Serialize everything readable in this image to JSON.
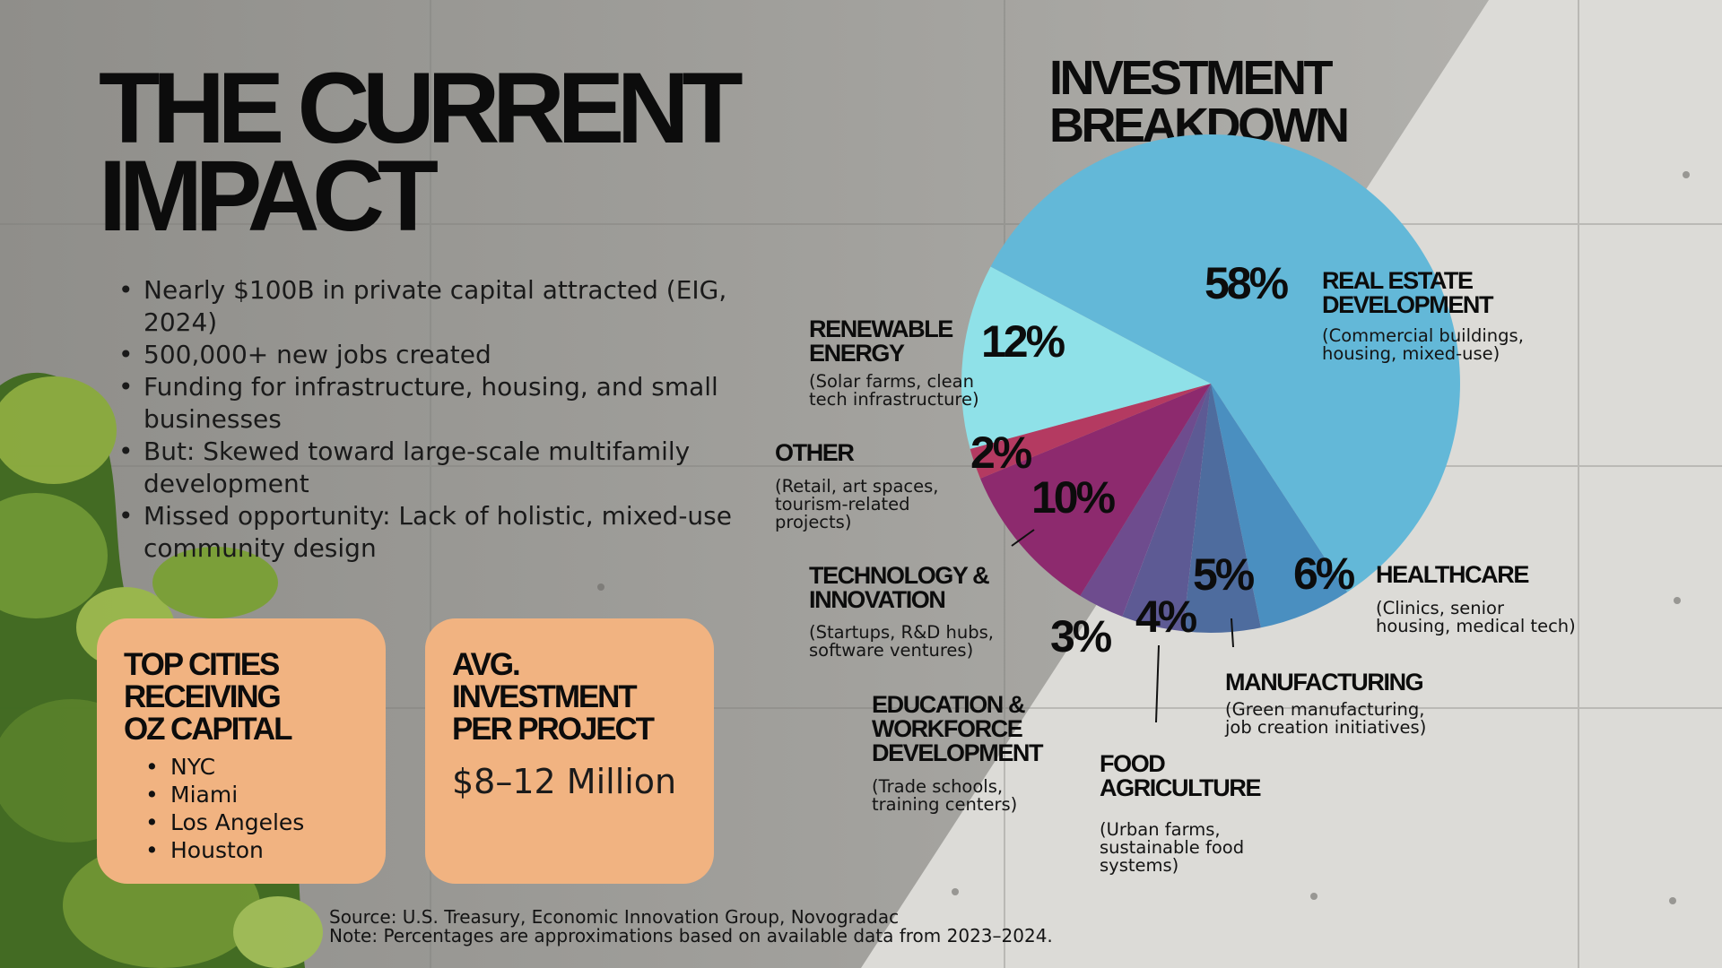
{
  "title": "THE CURRENT IMPACT",
  "title_lines": [
    "THE CURRENT",
    "IMPACT"
  ],
  "bullets": [
    "Nearly $100B in private capital attracted (EIG, 2024)",
    "500,000+ new jobs created",
    "Funding for infrastructure, housing, and small businesses",
    "But: Skewed toward large-scale multifamily development",
    "Missed opportunity: Lack of holistic, mixed-use community design"
  ],
  "cards": {
    "cities": {
      "title_lines": [
        "TOP CITIES",
        "RECEIVING",
        "OZ CAPITAL"
      ],
      "items": [
        "NYC",
        "Miami",
        "Los Angeles",
        "Houston"
      ]
    },
    "avg": {
      "title_lines": [
        "AVG.",
        "INVESTMENT",
        "PER PROJECT"
      ],
      "value": "$8–12 Million"
    }
  },
  "source": {
    "line1": "Source: U.S. Treasury, Economic Innovation Group, Novogradac",
    "line2": "Note: Percentages are approximations based on available data from 2023–2024."
  },
  "chart_data": {
    "type": "pie",
    "title": "INVESTMENT BREAKDOWN",
    "title_lines": [
      "INVESTMENT",
      "BREAKDOWN"
    ],
    "slices": [
      {
        "pct": "58%",
        "value": 58,
        "color": "#63b8d8",
        "label_lines": [
          "REAL ESTATE",
          "DEVELOPMENT"
        ],
        "desc_lines": [
          "(Commercial buildings,",
          "housing, mixed-use)"
        ]
      },
      {
        "pct": "6%",
        "value": 6,
        "color": "#4a8fc0",
        "label_lines": [
          "HEALTHCARE"
        ],
        "desc_lines": [
          "(Clinics, senior",
          "housing, medical tech)"
        ]
      },
      {
        "pct": "5%",
        "value": 5,
        "color": "#4e6c9e",
        "label_lines": [
          "MANUFACTURING"
        ],
        "desc_lines": [
          "(Green manufacturing,",
          "job creation initiatives)"
        ]
      },
      {
        "pct": "4%",
        "value": 4,
        "color": "#5d5a94",
        "label_lines": [
          "FOOD",
          "AGRICULTURE"
        ],
        "desc_lines": [
          "(Urban farms,",
          "sustainable food",
          "systems)"
        ]
      },
      {
        "pct": "3%",
        "value": 3,
        "color": "#6e4c8e",
        "label_lines": [
          "EDUCATION &",
          "WORKFORCE",
          "DEVELOPMENT"
        ],
        "desc_lines": [
          "(Trade schools,",
          "training centers)"
        ]
      },
      {
        "pct": "10%",
        "value": 10,
        "color": "#8d2a6e",
        "label_lines": [
          "TECHNOLOGY &",
          "INNOVATION"
        ],
        "desc_lines": [
          "(Startups, R&D hubs,",
          "software ventures)"
        ]
      },
      {
        "pct": "2%",
        "value": 2,
        "color": "#b43a61",
        "label_lines": [
          "OTHER"
        ],
        "desc_lines": [
          "(Retail, art spaces,",
          "tourism-related",
          "projects)"
        ]
      },
      {
        "pct": "12%",
        "value": 12,
        "color": "#8fe1e8",
        "label_lines": [
          "RENEWABLE",
          "ENERGY"
        ],
        "desc_lines": [
          "(Solar farms, clean",
          "tech infrastructure)"
        ]
      }
    ]
  }
}
